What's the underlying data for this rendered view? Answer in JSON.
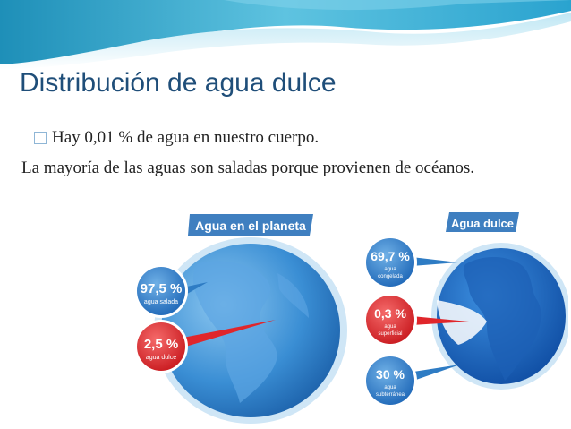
{
  "slide": {
    "title": "Distribución de agua dulce",
    "bullet_text": "Hay 0,01 % de agua en nuestro cuerpo.",
    "paragraph": " La mayoría de las aguas son saladas porque provienen de océanos."
  },
  "infographic": {
    "left": {
      "heading": "Agua en el planeta",
      "salt_value": "97,5 %",
      "salt_label": "agua salada",
      "fresh_value": "2,5 %",
      "fresh_label": "agua dulce"
    },
    "right": {
      "heading": "Agua dulce",
      "frozen_value": "69,7 %",
      "frozen_label_1": "agua",
      "frozen_label_2": "congelada",
      "surface_value": "0,3 %",
      "surface_label_1": "agua",
      "surface_label_2": "superficial",
      "underground_value": "30 %",
      "underground_label_1": "agua",
      "underground_label_2": "subterránea"
    }
  },
  "colors": {
    "title": "#1f4e79",
    "heading_banner": "#3f7fc0",
    "bubble_blue": "#2e7cc4",
    "bubble_red": "#e0262b"
  }
}
